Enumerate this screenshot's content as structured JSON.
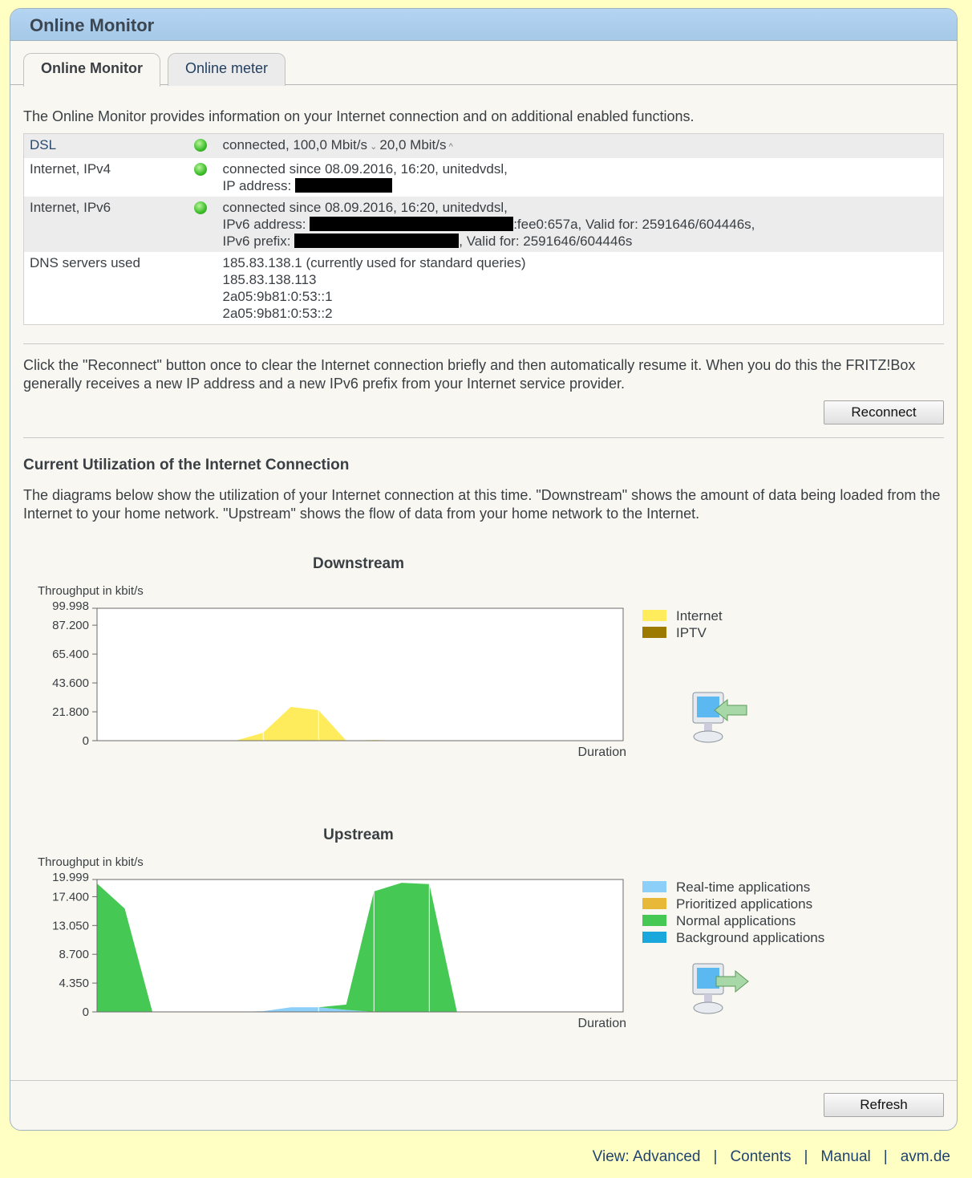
{
  "window": {
    "title": "Online Monitor"
  },
  "tabs": [
    {
      "label": "Online Monitor",
      "active": true
    },
    {
      "label": "Online meter",
      "active": false
    }
  ],
  "intro": "The Online Monitor provides information on your Internet connection and on additional enabled functions.",
  "status_rows": [
    {
      "label": "DSL",
      "status": "green",
      "lines": [
        "connected, 100,0 Mbit/s",
        "20,0 Mbit/s"
      ]
    },
    {
      "label": "Internet, IPv4",
      "status": "green",
      "lines": [
        "connected since 08.09.2016, 16:20, unitedvdsl,",
        "IP address:"
      ]
    },
    {
      "label": "Internet, IPv6",
      "status": "green",
      "lines": [
        "connected since 08.09.2016, 16:20, unitedvdsl,",
        "IPv6 address:",
        ":fee0:657a, Valid for: 2591646/604446s,",
        "IPv6 prefix:",
        ", Valid for: 2591646/604446s"
      ]
    },
    {
      "label": "DNS servers used",
      "lines": [
        "185.83.138.1 (currently used for standard queries)",
        "185.83.138.113",
        "2a05:9b81:0:53::1",
        "2a05:9b81:0:53::2"
      ]
    }
  ],
  "reconnect": {
    "text": "Click the \"Reconnect\" button once to clear the Internet connection briefly and then automatically resume it. When you do this the FRITZ!Box generally receives a new IP address and a new IPv6 prefix from your Internet service provider.",
    "button": "Reconnect"
  },
  "utilization": {
    "heading": "Current Utilization of the Internet Connection",
    "text": "The diagrams below show the utilization of your Internet connection at this time. \"Downstream\" shows the amount of data being loaded from the Internet to your home network. \"Upstream\" shows the flow of data from your home network to the Internet."
  },
  "refresh_button": "Refresh",
  "footer": {
    "links": [
      "View: Advanced",
      "Contents",
      "Manual",
      "avm.de"
    ]
  },
  "colors": {
    "header": "#aecdec",
    "background": "#ffffc4",
    "link": "#21446e"
  },
  "chart_data": [
    {
      "type": "area",
      "stacked": true,
      "title": "Downstream",
      "ylabel": "Throughput in kbit/s",
      "xlabel": "Duration",
      "ylim": [
        0,
        99998
      ],
      "yticks": [
        0,
        21800,
        43600,
        65400,
        87200,
        99998
      ],
      "ytick_labels": [
        "0",
        "21.800",
        "43.600",
        "65.400",
        "87.200",
        "99.998"
      ],
      "legend_placement": "right",
      "icon": "computer-download-arrow-icon",
      "series": [
        {
          "name": "Internet",
          "color": "#ffec5c",
          "values": [
            0,
            0,
            0,
            0,
            0,
            0,
            6000,
            25500,
            23000,
            0,
            500,
            0,
            0,
            0,
            0,
            0,
            0,
            0,
            0,
            0
          ]
        },
        {
          "name": "IPTV",
          "color": "#9c7a00",
          "values": [
            0,
            0,
            0,
            0,
            0,
            0,
            0,
            0,
            0,
            0,
            0,
            0,
            0,
            0,
            0,
            0,
            0,
            0,
            0,
            0
          ]
        }
      ]
    },
    {
      "type": "area",
      "stacked": true,
      "title": "Upstream",
      "ylabel": "Throughput in kbit/s",
      "xlabel": "Duration",
      "ylim": [
        0,
        19999
      ],
      "yticks": [
        0,
        4350,
        8700,
        13050,
        17400,
        19999
      ],
      "ytick_labels": [
        "0",
        "4.350",
        "8.700",
        "13.050",
        "17.400",
        "19.999"
      ],
      "legend_placement": "right",
      "icon": "computer-upload-arrow-icon",
      "series": [
        {
          "name": "Real-time applications",
          "color": "#8ccff8",
          "values": [
            0,
            0,
            0,
            0,
            0,
            0,
            100,
            700,
            700,
            300,
            0,
            0,
            0,
            0,
            0,
            0,
            0,
            0,
            0,
            0
          ]
        },
        {
          "name": "Prioritized applications",
          "color": "#e8b838",
          "values": [
            0,
            0,
            0,
            0,
            0,
            0,
            0,
            0,
            0,
            0,
            0,
            0,
            0,
            0,
            0,
            0,
            0,
            0,
            0,
            0
          ]
        },
        {
          "name": "Normal applications",
          "color": "#46c854",
          "values": [
            19400,
            15600,
            0,
            0,
            0,
            0,
            0,
            0,
            0,
            800,
            18200,
            19500,
            19300,
            0,
            0,
            0,
            0,
            0,
            0,
            0
          ]
        },
        {
          "name": "Background applications",
          "color": "#1aa8dc",
          "values": [
            0,
            0,
            0,
            0,
            0,
            0,
            0,
            0,
            0,
            0,
            0,
            0,
            0,
            0,
            0,
            0,
            0,
            0,
            0,
            0
          ]
        }
      ]
    }
  ]
}
